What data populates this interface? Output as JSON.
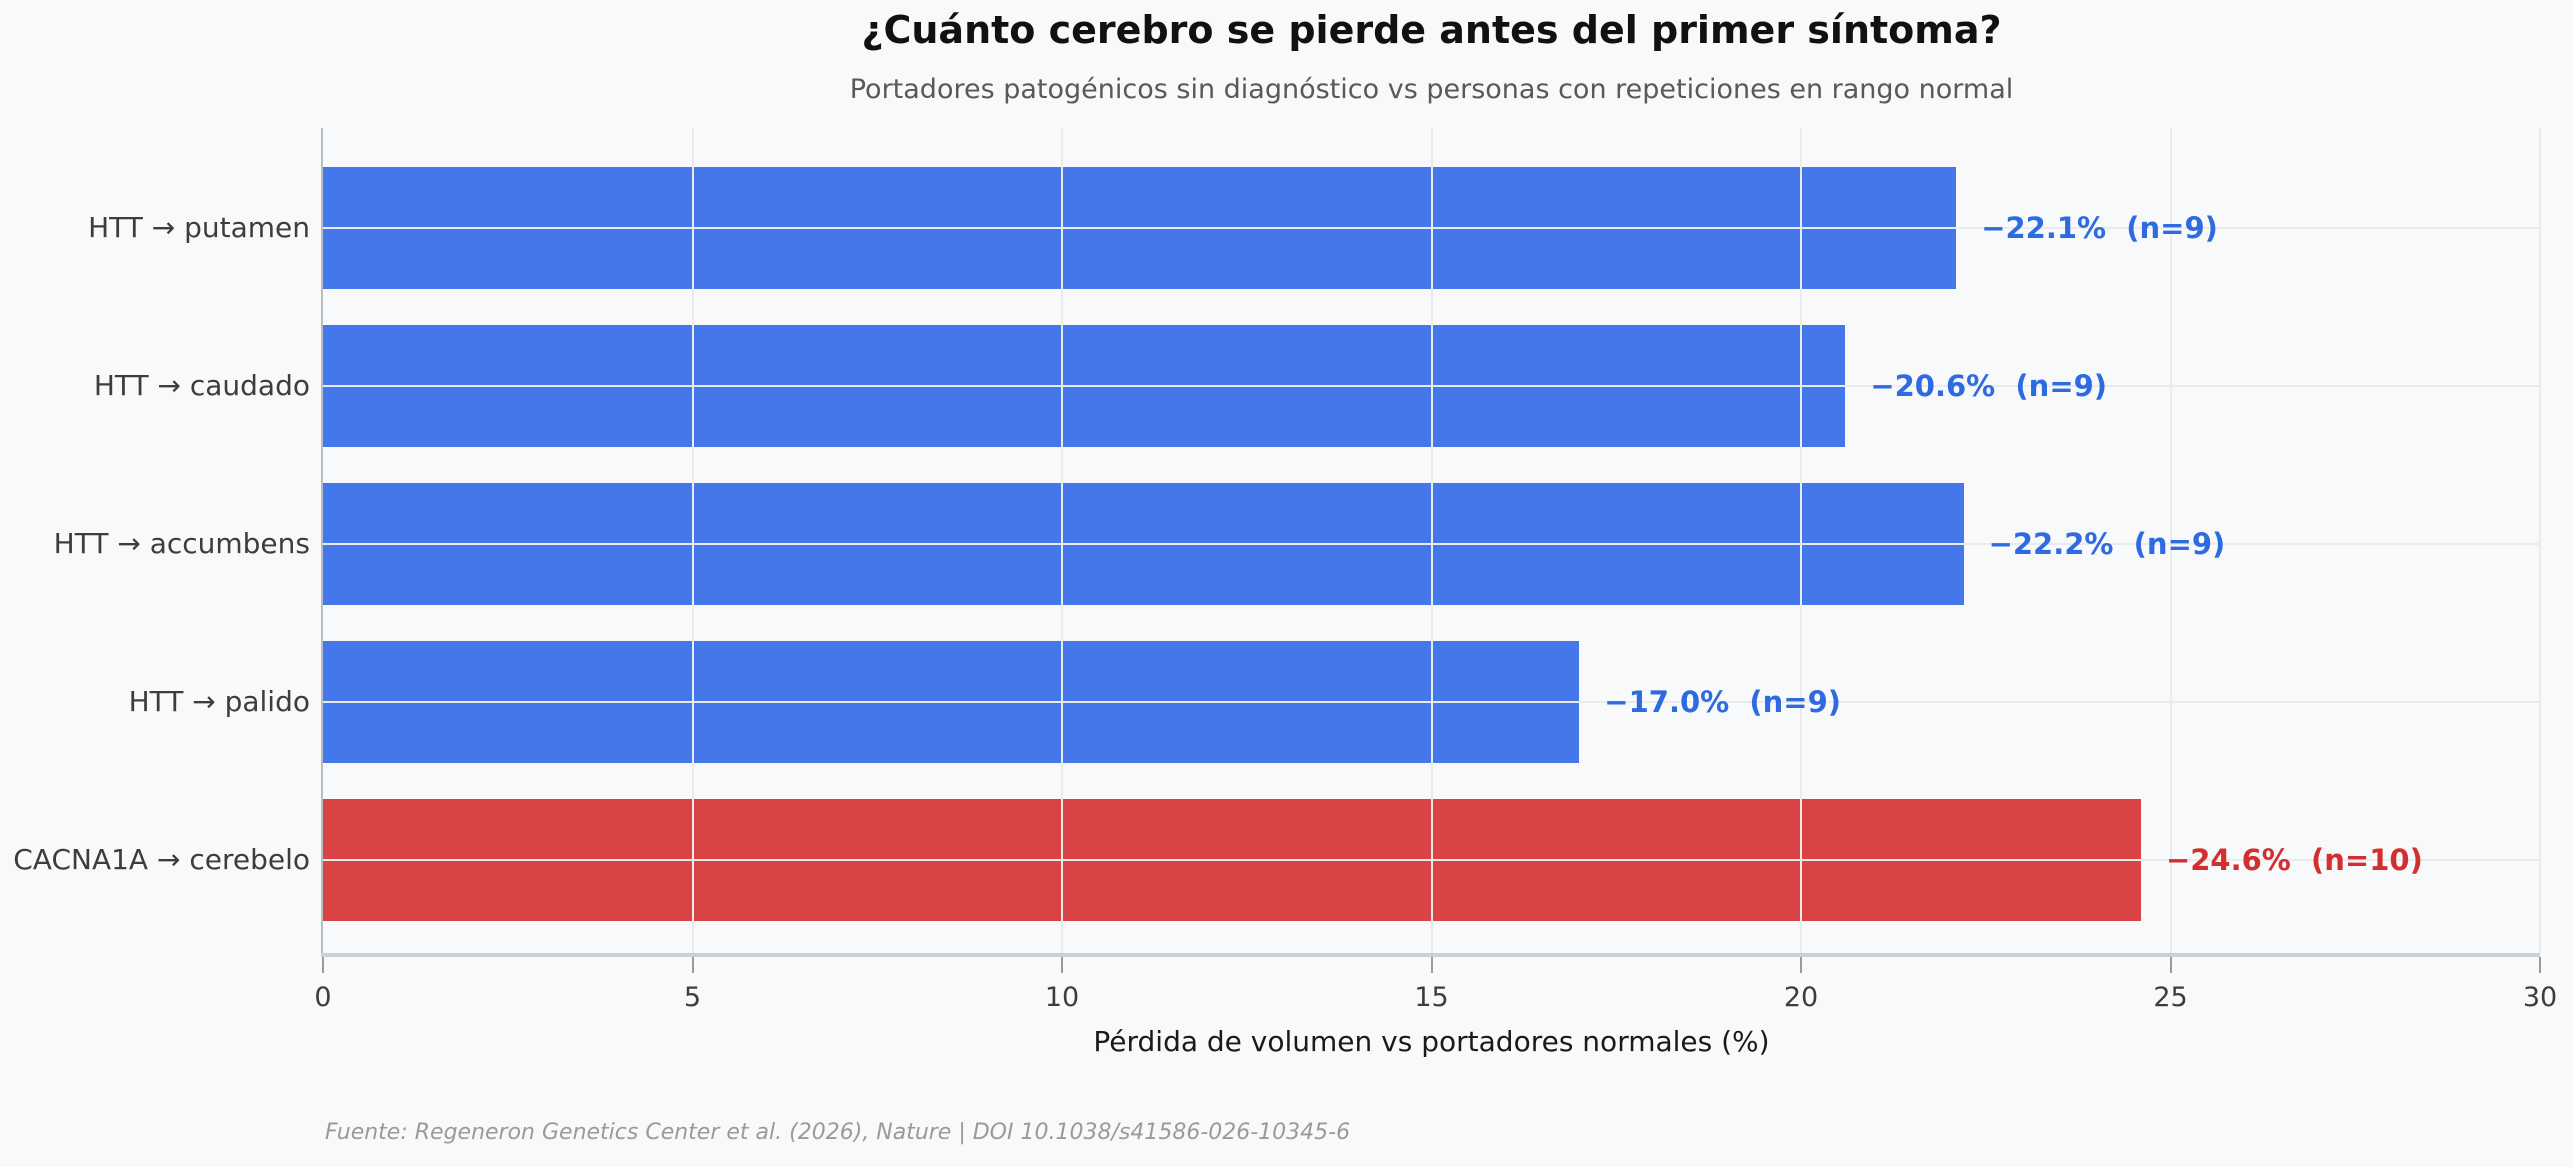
{
  "page": {
    "background_color": "#f8f9fa"
  },
  "header": {
    "title": "¿Cuánto cerebro se pierde antes del primer síntoma?",
    "subtitle": "Portadores patogénicos sin diagnóstico vs personas con repeticiones en rango normal"
  },
  "footer": {
    "source": "Fuente: Regeneron Genetics Center et al. (2026), Nature | DOI 10.1038/s41586-026-10345-6"
  },
  "chart_data": {
    "type": "bar",
    "orientation": "horizontal",
    "title": "¿Cuánto cerebro se pierde antes del primer síntoma?",
    "subtitle": "Portadores patogénicos sin diagnóstico vs personas con repeticiones en rango normal",
    "xlabel": "Pérdida de volumen vs portadores normales (%)",
    "ylabel": "",
    "xlim": [
      0,
      30
    ],
    "xticks": [
      0,
      5,
      10,
      15,
      20,
      25,
      30
    ],
    "grid": true,
    "legend": "none",
    "categories": [
      "HTT → putamen",
      "HTT → caudado",
      "HTT → accumbens",
      "HTT → palido",
      "CACNA1A → cerebelo"
    ],
    "values": [
      22.1,
      20.6,
      22.2,
      17.0,
      24.6
    ],
    "sample_sizes": [
      9,
      9,
      9,
      9,
      10
    ],
    "bars": [
      {
        "category": "HTT → putamen",
        "value": 22.1,
        "n": 9,
        "label": "−22.1%  (n=9)",
        "bar_color": "#4477e9",
        "label_color": "#2e6be0"
      },
      {
        "category": "HTT → caudado",
        "value": 20.6,
        "n": 9,
        "label": "−20.6%  (n=9)",
        "bar_color": "#4477e9",
        "label_color": "#2e6be0"
      },
      {
        "category": "HTT → accumbens",
        "value": 22.2,
        "n": 9,
        "label": "−22.2%  (n=9)",
        "bar_color": "#4477e9",
        "label_color": "#2e6be0"
      },
      {
        "category": "HTT → palido",
        "value": 17.0,
        "n": 9,
        "label": "−17.0%  (n=9)",
        "bar_color": "#4477e9",
        "label_color": "#2e6be0"
      },
      {
        "category": "CACNA1A → cerebelo",
        "value": 24.6,
        "n": 10,
        "label": "−24.6%  (n=10)",
        "bar_color": "#da4343",
        "label_color": "#d32f2e"
      }
    ],
    "colors": {
      "bar_default": "#4477e9",
      "bar_highlight": "#da4343",
      "label_default": "#2e6be0",
      "label_highlight": "#d32f2e",
      "grid": "#e9ebed",
      "spine": "#b9bcc0"
    }
  }
}
